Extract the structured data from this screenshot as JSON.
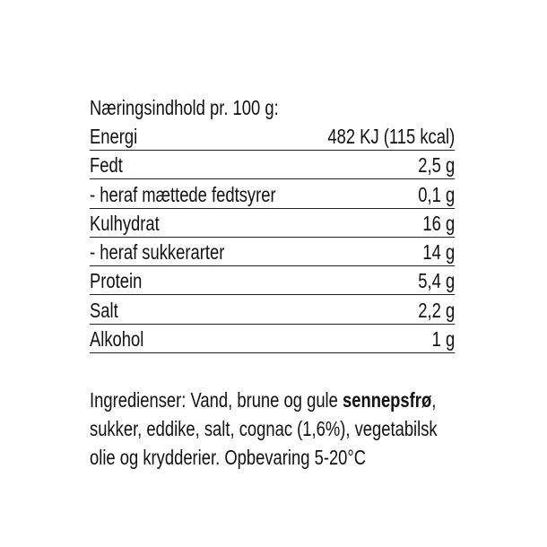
{
  "nutrition": {
    "heading": "Næringsindhold pr. 100 g:",
    "rows": [
      {
        "label": "Energi",
        "value": "482 KJ (115 kcal)"
      },
      {
        "label": "Fedt",
        "value": "2,5 g"
      },
      {
        "label": "- heraf mættede fedtsyrer",
        "value": "0,1 g"
      },
      {
        "label": "Kulhydrat",
        "value": "16 g"
      },
      {
        "label": "- heraf sukkerarter",
        "value": "14 g"
      },
      {
        "label": "Protein",
        "value": "5,4 g"
      },
      {
        "label": "Salt",
        "value": "2,2 g"
      },
      {
        "label": "Alkohol",
        "value": "1 g"
      }
    ]
  },
  "ingredients": {
    "line1_prefix": "Ingredienser: Vand, brune og gule ",
    "line1_bold": "sennepsfrø",
    "line1_suffix": ",",
    "line2": "sukker, eddike, salt, cognac (1,6%), vegetabilsk",
    "line3": "olie og krydderier. Opbevaring 5-20°C"
  }
}
